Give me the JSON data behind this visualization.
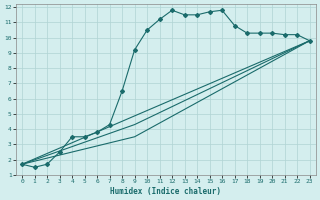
{
  "xlabel": "Humidex (Indice chaleur)",
  "bg_color": "#d4eeee",
  "grid_color": "#b0d4d4",
  "line_color": "#1a6b6b",
  "xlim": [
    -0.5,
    23.5
  ],
  "ylim": [
    1,
    12.2
  ],
  "xticks": [
    0,
    1,
    2,
    3,
    4,
    5,
    6,
    7,
    8,
    9,
    10,
    11,
    12,
    13,
    14,
    15,
    16,
    17,
    18,
    19,
    20,
    21,
    22,
    23
  ],
  "yticks": [
    1,
    2,
    3,
    4,
    5,
    6,
    7,
    8,
    9,
    10,
    11,
    12
  ],
  "curve1_x": [
    0,
    1,
    2,
    3,
    4,
    5,
    6,
    7,
    8,
    9,
    10,
    11,
    12,
    13,
    14,
    15,
    16,
    17,
    18,
    19,
    20,
    21,
    22,
    23
  ],
  "curve1_y": [
    1.7,
    1.5,
    1.7,
    2.5,
    3.5,
    3.5,
    3.8,
    4.3,
    6.5,
    9.2,
    10.5,
    11.2,
    11.8,
    11.5,
    11.5,
    11.7,
    11.8,
    10.8,
    10.3,
    10.3,
    10.3,
    10.2,
    10.2,
    9.8
  ],
  "curve2_x": [
    0,
    23
  ],
  "curve2_y": [
    1.7,
    9.8
  ],
  "curve3_x": [
    0,
    9,
    23
  ],
  "curve3_y": [
    1.7,
    4.3,
    9.8
  ],
  "curve4_x": [
    0,
    9,
    23
  ],
  "curve4_y": [
    1.7,
    3.5,
    9.8
  ],
  "marker": "D",
  "marker_size": 2.0,
  "linewidth": 0.8
}
